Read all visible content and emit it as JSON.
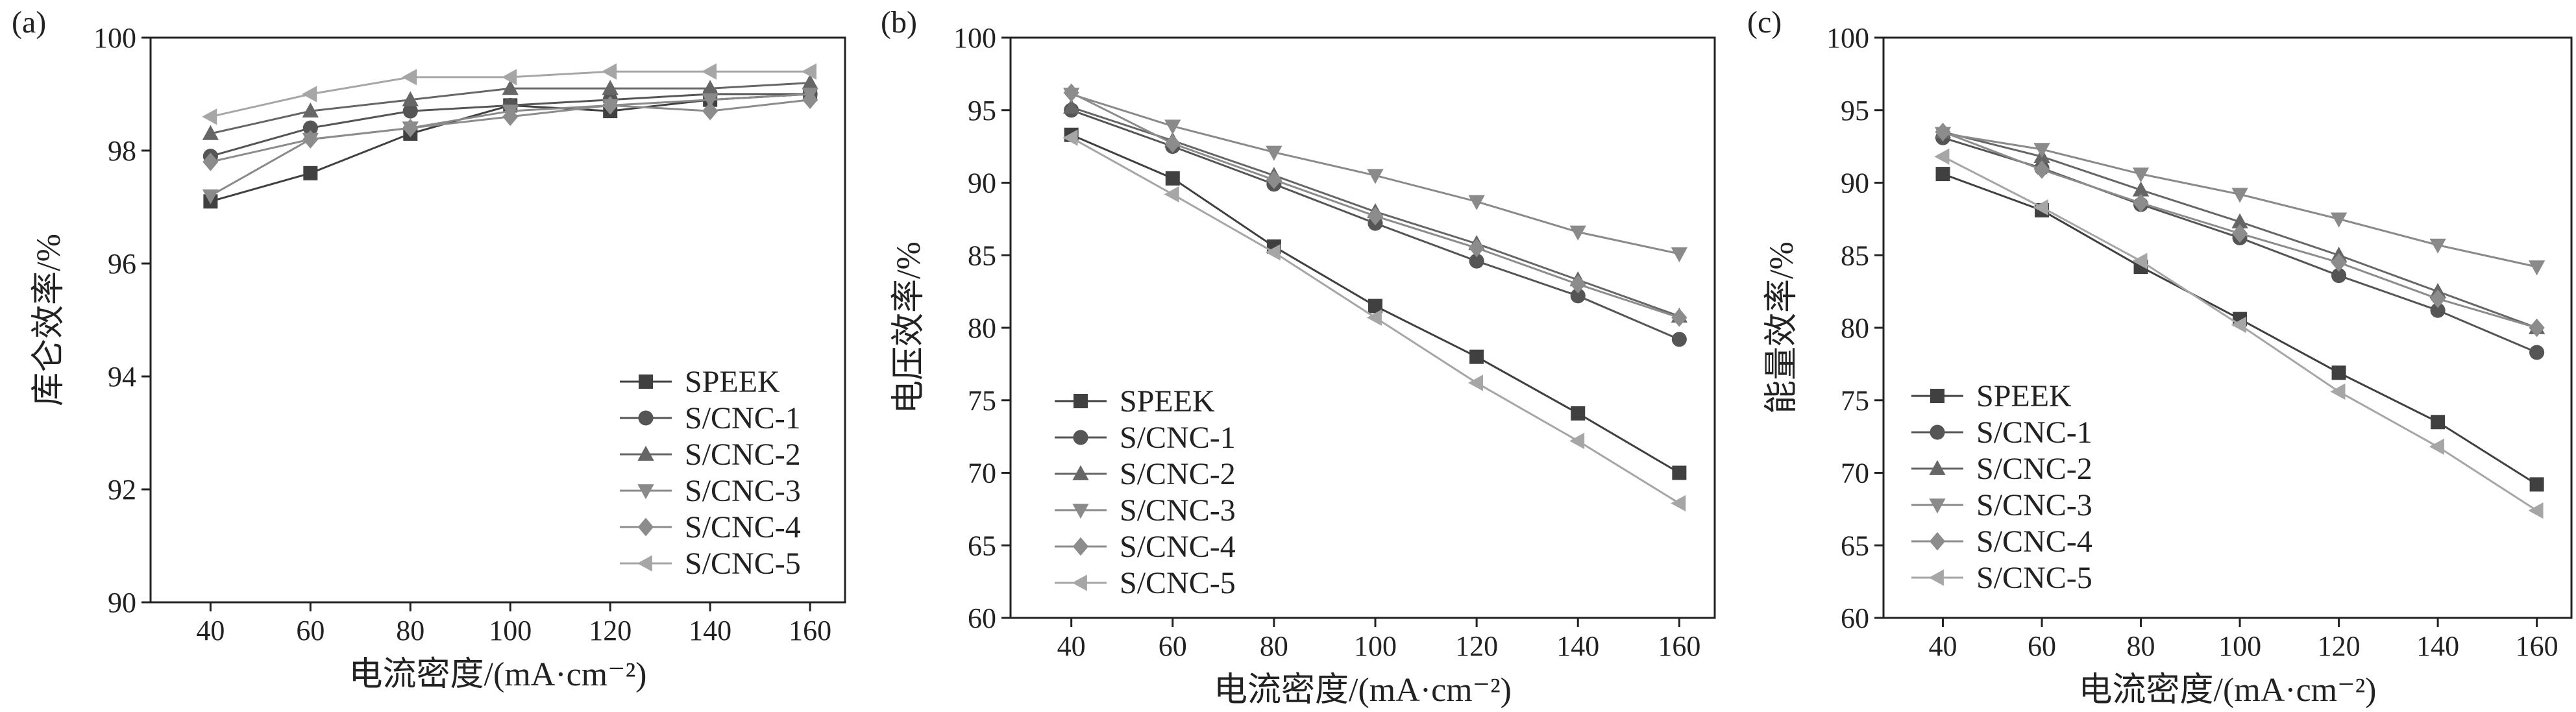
{
  "chart_data": [
    {
      "type": "line",
      "panel_label": "(a)",
      "xlabel": "电流密度/(mA·cm⁻²)",
      "ylabel": "库仑效率/%",
      "xlim": [
        28,
        167
      ],
      "ylim": [
        90,
        100
      ],
      "x_ticks": [
        40,
        60,
        80,
        100,
        120,
        140,
        160
      ],
      "y_ticks": [
        90,
        92,
        94,
        96,
        98,
        100
      ],
      "legend_position": "bottom-right",
      "x": [
        40,
        60,
        80,
        100,
        120,
        140,
        160
      ],
      "series": [
        {
          "name": "SPEEK",
          "values": [
            97.1,
            97.6,
            98.3,
            98.8,
            98.7,
            98.9,
            99.0
          ]
        },
        {
          "name": "S/CNC-1",
          "values": [
            97.9,
            98.4,
            98.7,
            98.8,
            98.9,
            99.0,
            99.0
          ]
        },
        {
          "name": "S/CNC-2",
          "values": [
            98.3,
            98.7,
            98.9,
            99.1,
            99.1,
            99.1,
            99.2
          ]
        },
        {
          "name": "S/CNC-3",
          "values": [
            97.2,
            98.2,
            98.4,
            98.7,
            98.8,
            98.9,
            99.0
          ]
        },
        {
          "name": "S/CNC-4",
          "values": [
            97.8,
            98.2,
            98.4,
            98.6,
            98.8,
            98.7,
            98.9
          ]
        },
        {
          "name": "S/CNC-5",
          "values": [
            98.6,
            99.0,
            99.3,
            99.3,
            99.4,
            99.4,
            99.4
          ]
        }
      ]
    },
    {
      "type": "line",
      "panel_label": "(b)",
      "xlabel": "电流密度/(mA·cm⁻²)",
      "ylabel": "电压效率/%",
      "xlim": [
        28,
        167
      ],
      "ylim": [
        60,
        100
      ],
      "x_ticks": [
        40,
        60,
        80,
        100,
        120,
        140,
        160
      ],
      "y_ticks": [
        60,
        65,
        70,
        75,
        80,
        85,
        90,
        95,
        100
      ],
      "legend_position": "bottom-left",
      "x": [
        40,
        60,
        80,
        100,
        120,
        140,
        160
      ],
      "series": [
        {
          "name": "SPEEK",
          "values": [
            93.3,
            90.3,
            85.6,
            81.5,
            78.0,
            74.1,
            70.0
          ]
        },
        {
          "name": "S/CNC-1",
          "values": [
            95.0,
            92.5,
            89.9,
            87.2,
            84.6,
            82.2,
            79.2
          ]
        },
        {
          "name": "S/CNC-2",
          "values": [
            95.2,
            92.9,
            90.5,
            88.0,
            85.8,
            83.3,
            80.8
          ]
        },
        {
          "name": "S/CNC-3",
          "values": [
            96.1,
            93.9,
            92.1,
            90.5,
            88.7,
            86.6,
            85.1
          ]
        },
        {
          "name": "S/CNC-4",
          "values": [
            96.2,
            92.7,
            90.2,
            87.7,
            85.5,
            83.0,
            80.7
          ]
        },
        {
          "name": "S/CNC-5",
          "values": [
            93.1,
            89.2,
            85.2,
            80.7,
            76.2,
            72.2,
            67.9
          ]
        }
      ]
    },
    {
      "type": "line",
      "panel_label": "(c)",
      "xlabel": "电流密度/(mA·cm⁻²)",
      "ylabel": "能量效率/%",
      "xlim": [
        28,
        167
      ],
      "ylim": [
        60,
        100
      ],
      "x_ticks": [
        40,
        60,
        80,
        100,
        120,
        140,
        160
      ],
      "y_ticks": [
        60,
        65,
        70,
        75,
        80,
        85,
        90,
        95,
        100
      ],
      "legend_position": "bottom-left",
      "x": [
        40,
        60,
        80,
        100,
        120,
        140,
        160
      ],
      "series": [
        {
          "name": "SPEEK",
          "values": [
            90.6,
            88.1,
            84.2,
            80.6,
            76.9,
            73.5,
            69.2
          ]
        },
        {
          "name": "S/CNC-1",
          "values": [
            93.1,
            91.0,
            88.5,
            86.2,
            83.6,
            81.2,
            78.3
          ]
        },
        {
          "name": "S/CNC-2",
          "values": [
            93.5,
            91.8,
            89.5,
            87.3,
            85.0,
            82.5,
            80.0
          ]
        },
        {
          "name": "S/CNC-3",
          "values": [
            93.4,
            92.3,
            90.6,
            89.2,
            87.5,
            85.7,
            84.2
          ]
        },
        {
          "name": "S/CNC-4",
          "values": [
            93.5,
            90.9,
            88.6,
            86.5,
            84.5,
            82.0,
            80.0
          ]
        },
        {
          "name": "S/CNC-5",
          "values": [
            91.8,
            88.3,
            84.6,
            80.2,
            75.6,
            71.8,
            67.4
          ]
        }
      ]
    }
  ],
  "series_styles": [
    {
      "color": "#404040",
      "marker": "square"
    },
    {
      "color": "#555555",
      "marker": "circle"
    },
    {
      "color": "#666666",
      "marker": "triangle-up"
    },
    {
      "color": "#8a8a8a",
      "marker": "triangle-down"
    },
    {
      "color": "#8c8c8c",
      "marker": "diamond"
    },
    {
      "color": "#a6a6a6",
      "marker": "triangle-left"
    }
  ]
}
